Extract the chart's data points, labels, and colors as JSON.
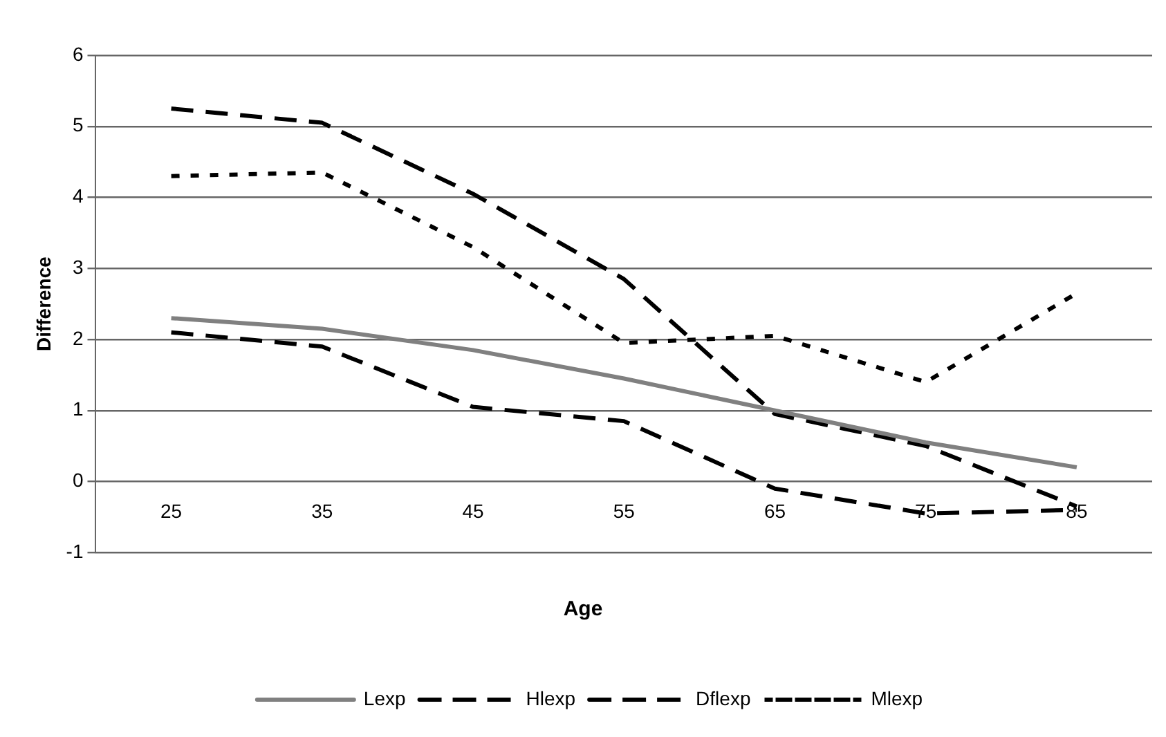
{
  "chart_data": {
    "type": "line",
    "xlabel": "Age",
    "ylabel": "Difference",
    "categories": [
      "25",
      "35",
      "45",
      "55",
      "65",
      "75",
      "85"
    ],
    "series": [
      {
        "name": "Lexp",
        "color": "#808080",
        "line_style": "solid",
        "values": [
          2.3,
          2.15,
          1.85,
          1.45,
          1.0,
          0.55,
          0.2
        ]
      },
      {
        "name": "Hlexp",
        "color": "#000000",
        "line_style": "dashed",
        "values": [
          5.25,
          5.05,
          4.05,
          2.85,
          0.95,
          0.5,
          -0.35
        ]
      },
      {
        "name": "Dflexp",
        "color": "#000000",
        "line_style": "dashed",
        "values": [
          2.1,
          1.9,
          1.05,
          0.85,
          -0.1,
          -0.45,
          -0.4
        ]
      },
      {
        "name": "Mlexp",
        "color": "#000000",
        "line_style": "dotted",
        "values": [
          4.3,
          4.35,
          3.3,
          1.95,
          2.05,
          1.4,
          2.65
        ]
      }
    ],
    "ylim": [
      -1,
      6
    ],
    "yticks": [
      -1,
      0,
      1,
      2,
      3,
      4,
      5,
      6
    ],
    "grid": "y",
    "legend": "bottom",
    "marker": "none"
  }
}
